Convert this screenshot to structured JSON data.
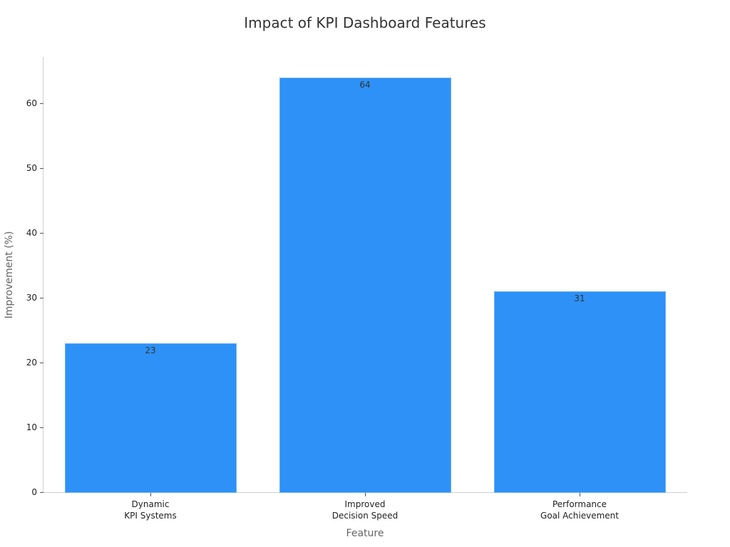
{
  "chart_data": {
    "type": "bar",
    "title": "Impact of KPI Dashboard Features",
    "xlabel": "Feature",
    "ylabel": "Improvement (%)",
    "categories": [
      "Dynamic\nKPI Systems",
      "Improved\nDecision Speed",
      "Performance\nGoal Achievement"
    ],
    "category_lines": [
      [
        "Dynamic",
        "KPI Systems"
      ],
      [
        "Improved",
        "Decision Speed"
      ],
      [
        "Performance",
        "Goal Achievement"
      ]
    ],
    "values": [
      23,
      64,
      31
    ],
    "data_labels": [
      "23",
      "64",
      "31"
    ],
    "ylim": [
      0,
      67
    ],
    "yticks": [
      0,
      10,
      20,
      30,
      40,
      50,
      60
    ],
    "ytick_labels": [
      "0",
      "10",
      "20",
      "30",
      "40",
      "50",
      "60"
    ],
    "grid": false,
    "legend": null,
    "bar_color": "#2e91f7"
  }
}
